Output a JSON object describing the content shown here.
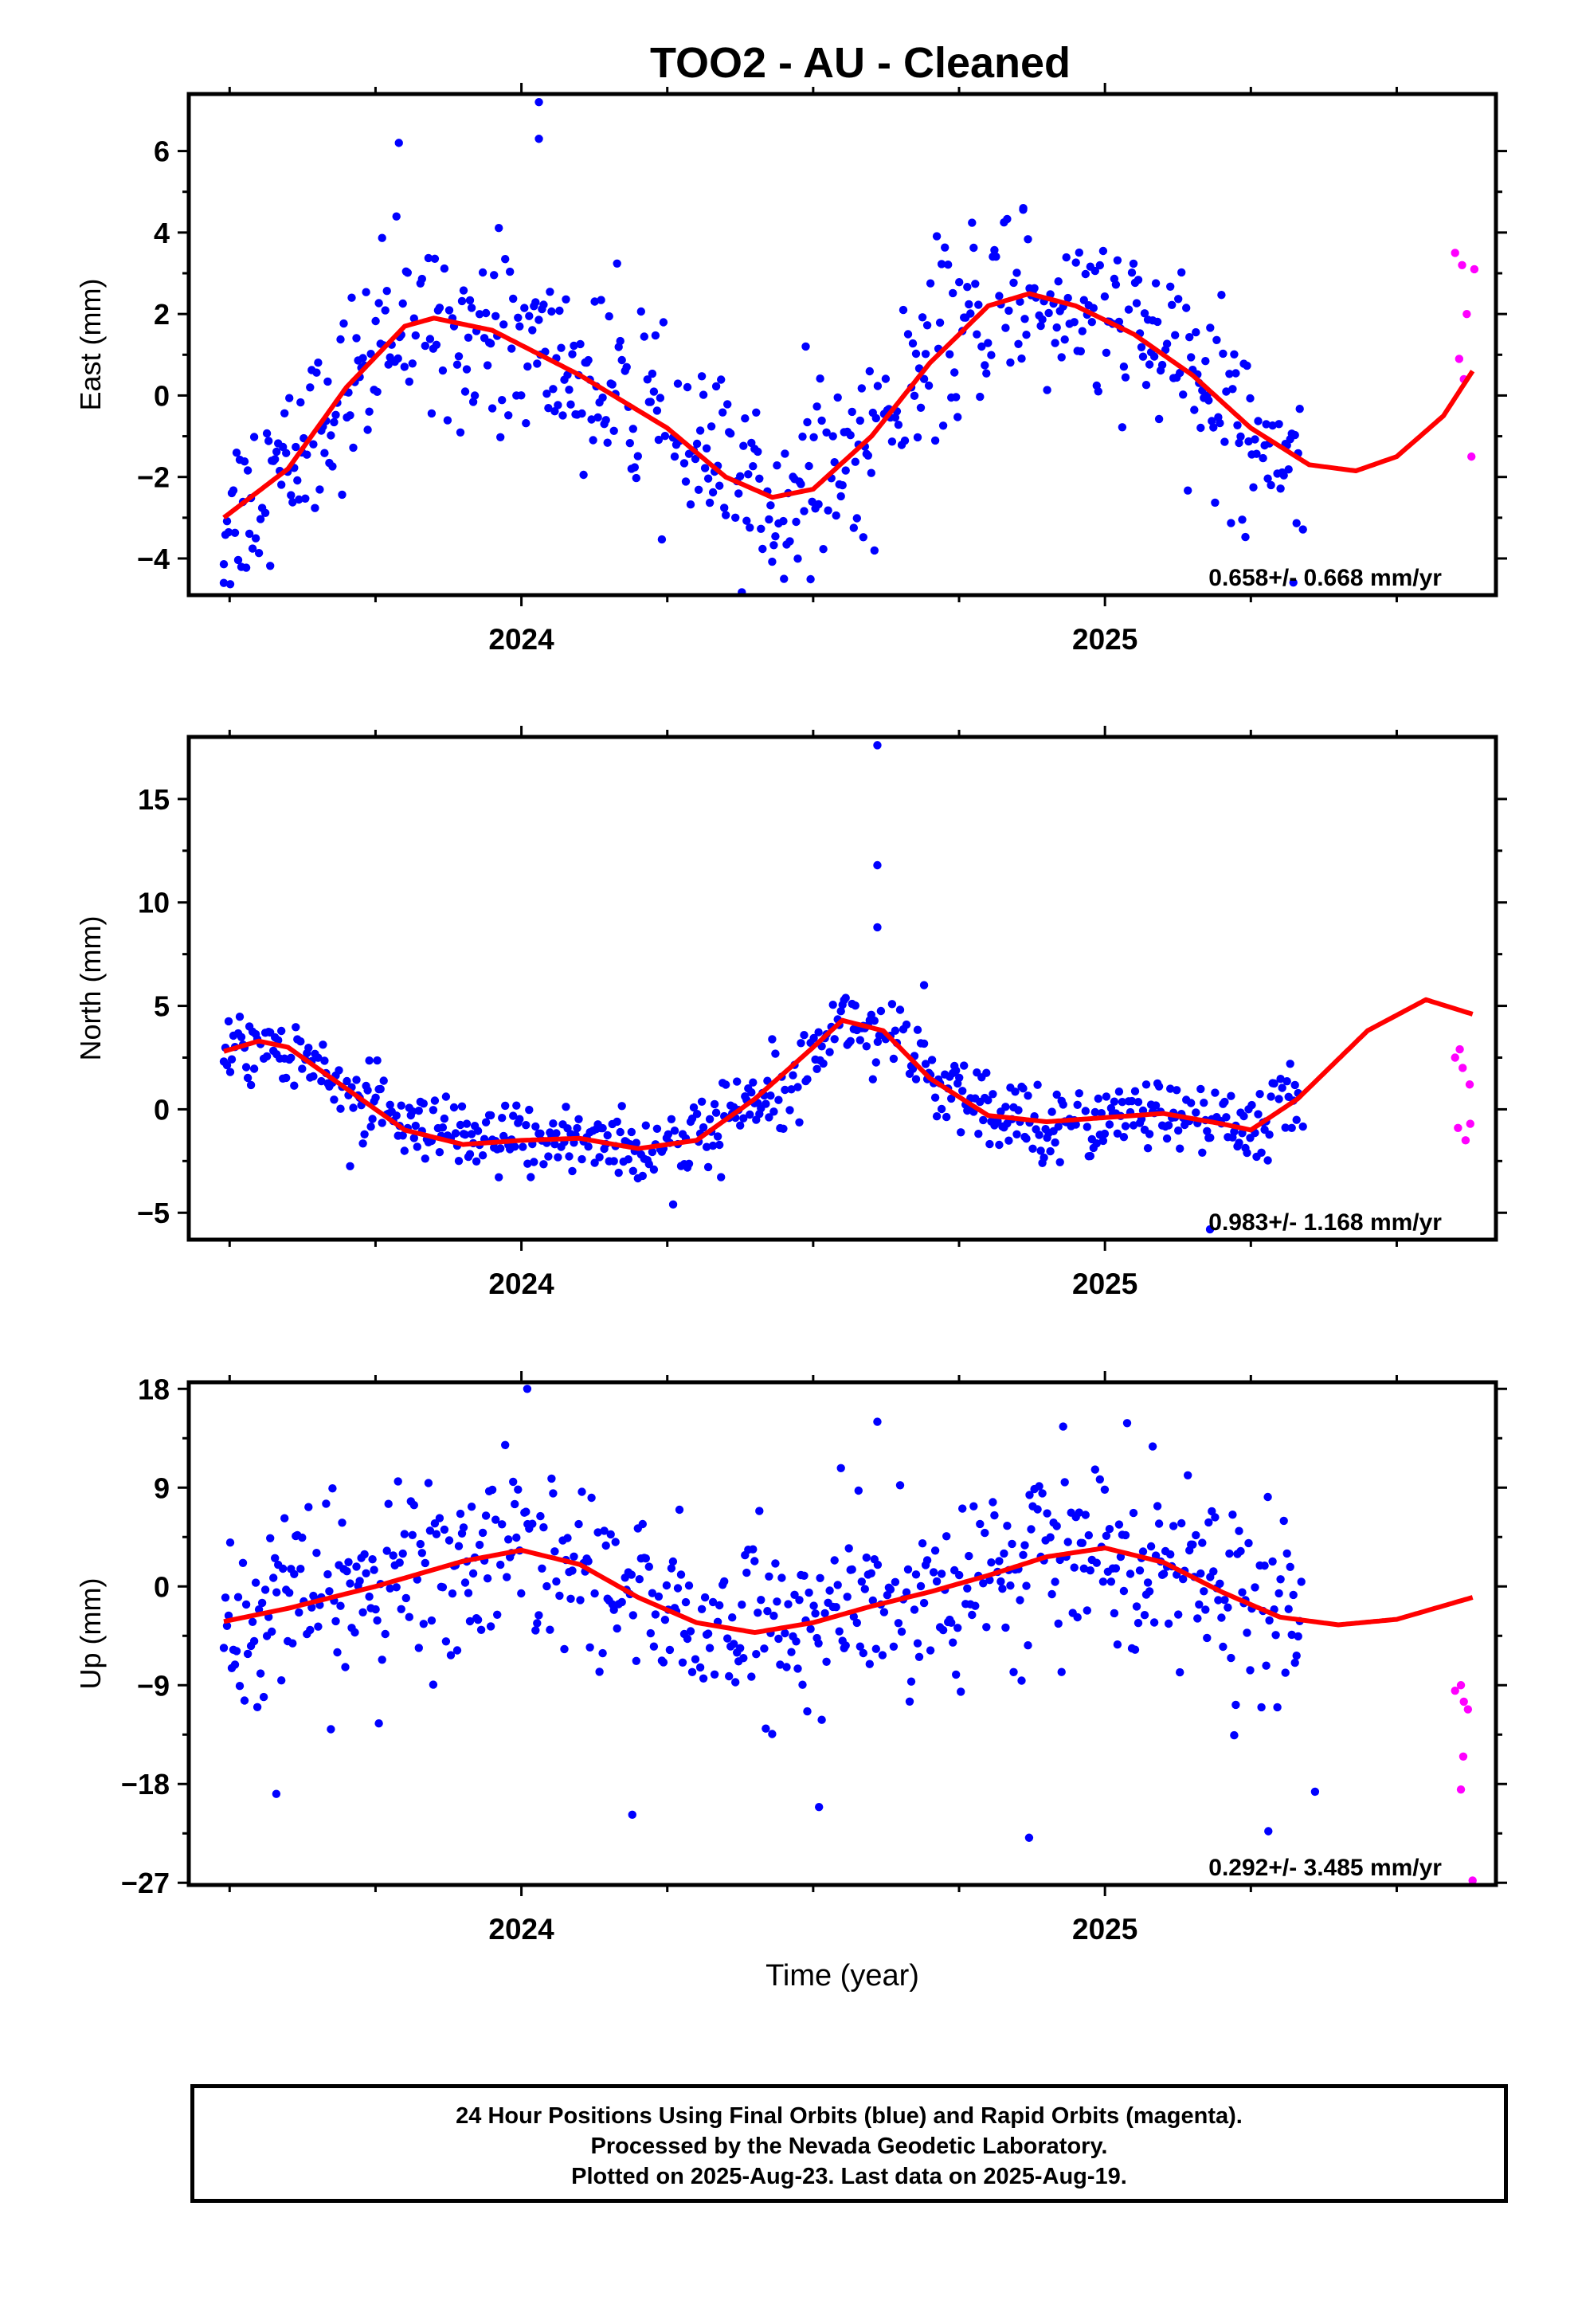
{
  "title": "TOO2  - AU - Cleaned",
  "footer": {
    "line1": "24 Hour Positions Using Final Orbits (blue) and Rapid Orbits (magenta).",
    "line2": "Processed by the Nevada Geodetic Laboratory.",
    "line3": "Plotted on 2025-Aug-23. Last data on 2025-Aug-19."
  },
  "colors": {
    "final": "#0000ff",
    "rapid": "#ff00ff",
    "fit": "#ff0000",
    "axis": "#000000"
  },
  "chart_data": [
    {
      "type": "scatter",
      "component": "east",
      "ylabel": "East (mm)",
      "xlabel": "",
      "ylim": [
        -4.9,
        7.4
      ],
      "yticks": [
        -4,
        -2,
        0,
        2,
        4,
        6
      ],
      "ytick_labels": [
        "−4",
        "−2",
        "0",
        "2",
        "4",
        "6"
      ],
      "xlim": [
        2023.43,
        2025.67
      ],
      "xtick_labels": [
        {
          "x": 2024,
          "label": "2024"
        },
        {
          "x": 2025,
          "label": "2025"
        }
      ],
      "rate_label": "0.658+/- 0.668 mm/yr",
      "fit": [
        {
          "t": 2023.49,
          "v": -3.0
        },
        {
          "t": 2023.6,
          "v": -1.8
        },
        {
          "t": 2023.7,
          "v": 0.2
        },
        {
          "t": 2023.8,
          "v": 1.7
        },
        {
          "t": 2023.85,
          "v": 1.9
        },
        {
          "t": 2023.95,
          "v": 1.6
        },
        {
          "t": 2024.1,
          "v": 0.5
        },
        {
          "t": 2024.25,
          "v": -0.8
        },
        {
          "t": 2024.35,
          "v": -2.0
        },
        {
          "t": 2024.43,
          "v": -2.5
        },
        {
          "t": 2024.5,
          "v": -2.3
        },
        {
          "t": 2024.6,
          "v": -1.0
        },
        {
          "t": 2024.7,
          "v": 0.8
        },
        {
          "t": 2024.8,
          "v": 2.2
        },
        {
          "t": 2024.87,
          "v": 2.5
        },
        {
          "t": 2024.95,
          "v": 2.2
        },
        {
          "t": 2025.05,
          "v": 1.5
        },
        {
          "t": 2025.15,
          "v": 0.5
        },
        {
          "t": 2025.25,
          "v": -0.8
        },
        {
          "t": 2025.35,
          "v": -1.7
        },
        {
          "t": 2025.43,
          "v": -1.85
        },
        {
          "t": 2025.5,
          "v": -1.5
        },
        {
          "t": 2025.58,
          "v": -0.5
        },
        {
          "t": 2025.63,
          "v": 0.6
        }
      ],
      "rapid": [
        {
          "t": 2025.6,
          "v": 3.5
        },
        {
          "t": 2025.612,
          "v": 3.2
        },
        {
          "t": 2025.62,
          "v": 2.0
        },
        {
          "t": 2025.607,
          "v": 0.9
        },
        {
          "t": 2025.615,
          "v": 0.4
        },
        {
          "t": 2025.628,
          "v": -1.5
        },
        {
          "t": 2025.633,
          "v": 3.1
        }
      ],
      "outliers": [
        {
          "t": 2024.03,
          "v": 7.2
        },
        {
          "t": 2024.03,
          "v": 6.3
        },
        {
          "t": 2023.79,
          "v": 6.2
        },
        {
          "t": 2024.86,
          "v": 4.6
        },
        {
          "t": 2023.49,
          "v": -4.6
        },
        {
          "t": 2024.45,
          "v": -4.5
        }
      ],
      "scatter_sd": 1.1
    },
    {
      "type": "scatter",
      "component": "north",
      "ylabel": "North (mm)",
      "xlabel": "",
      "ylim": [
        -6.3,
        18.0
      ],
      "yticks": [
        -5,
        0,
        5,
        10,
        15
      ],
      "ytick_labels": [
        "−5",
        "0",
        "5",
        "10",
        "15"
      ],
      "xlim": [
        2023.43,
        2025.67
      ],
      "xtick_labels": [
        {
          "x": 2024,
          "label": "2024"
        },
        {
          "x": 2025,
          "label": "2025"
        }
      ],
      "rate_label": "0.983+/- 1.168 mm/yr",
      "fit": [
        {
          "t": 2023.49,
          "v": 2.8
        },
        {
          "t": 2023.55,
          "v": 3.3
        },
        {
          "t": 2023.6,
          "v": 3.0
        },
        {
          "t": 2023.7,
          "v": 1.0
        },
        {
          "t": 2023.8,
          "v": -1.0
        },
        {
          "t": 2023.9,
          "v": -1.7
        },
        {
          "t": 2024.0,
          "v": -1.5
        },
        {
          "t": 2024.1,
          "v": -1.4
        },
        {
          "t": 2024.2,
          "v": -1.9
        },
        {
          "t": 2024.3,
          "v": -1.5
        },
        {
          "t": 2024.4,
          "v": 0.5
        },
        {
          "t": 2024.5,
          "v": 3.0
        },
        {
          "t": 2024.55,
          "v": 4.3
        },
        {
          "t": 2024.62,
          "v": 3.8
        },
        {
          "t": 2024.7,
          "v": 1.5
        },
        {
          "t": 2024.8,
          "v": -0.3
        },
        {
          "t": 2024.9,
          "v": -0.6
        },
        {
          "t": 2025.0,
          "v": -0.4
        },
        {
          "t": 2025.1,
          "v": -0.2
        },
        {
          "t": 2025.2,
          "v": -0.7
        },
        {
          "t": 2025.25,
          "v": -1.0
        },
        {
          "t": 2025.33,
          "v": 0.5
        },
        {
          "t": 2025.45,
          "v": 3.8
        },
        {
          "t": 2025.55,
          "v": 5.3
        },
        {
          "t": 2025.63,
          "v": 4.6
        }
      ],
      "rapid": [
        {
          "t": 2025.6,
          "v": 2.5
        },
        {
          "t": 2025.608,
          "v": 2.9
        },
        {
          "t": 2025.613,
          "v": 2.0
        },
        {
          "t": 2025.625,
          "v": 1.2
        },
        {
          "t": 2025.605,
          "v": -0.9
        },
        {
          "t": 2025.618,
          "v": -1.5
        },
        {
          "t": 2025.626,
          "v": -0.7
        }
      ],
      "outliers": [
        {
          "t": 2024.61,
          "v": 17.6
        },
        {
          "t": 2024.61,
          "v": 11.8
        },
        {
          "t": 2024.61,
          "v": 8.8
        },
        {
          "t": 2024.69,
          "v": 6.0
        },
        {
          "t": 2025.18,
          "v": -5.8
        },
        {
          "t": 2024.26,
          "v": -4.6
        }
      ],
      "scatter_sd": 0.9
    },
    {
      "type": "scatter",
      "component": "up",
      "ylabel": "Up (mm)",
      "xlabel": "Time (year)",
      "ylim": [
        -27.2,
        18.6
      ],
      "yticks": [
        -27,
        -18,
        -9,
        0,
        9,
        18
      ],
      "ytick_labels": [
        "−27",
        "−18",
        "−9",
        "0",
        "9",
        "18"
      ],
      "xlim": [
        2023.43,
        2025.67
      ],
      "xtick_labels": [
        {
          "x": 2024,
          "label": "2024"
        },
        {
          "x": 2025,
          "label": "2025"
        }
      ],
      "rate_label": "0.292+/- 3.485 mm/yr",
      "fit": [
        {
          "t": 2023.49,
          "v": -3.2
        },
        {
          "t": 2023.6,
          "v": -2.0
        },
        {
          "t": 2023.75,
          "v": 0.0
        },
        {
          "t": 2023.9,
          "v": 2.3
        },
        {
          "t": 2024.0,
          "v": 3.3
        },
        {
          "t": 2024.1,
          "v": 2.0
        },
        {
          "t": 2024.2,
          "v": -1.0
        },
        {
          "t": 2024.3,
          "v": -3.3
        },
        {
          "t": 2024.4,
          "v": -4.2
        },
        {
          "t": 2024.5,
          "v": -3.3
        },
        {
          "t": 2024.6,
          "v": -1.8
        },
        {
          "t": 2024.7,
          "v": -0.5
        },
        {
          "t": 2024.8,
          "v": 1.0
        },
        {
          "t": 2024.9,
          "v": 2.7
        },
        {
          "t": 2025.0,
          "v": 3.5
        },
        {
          "t": 2025.1,
          "v": 2.2
        },
        {
          "t": 2025.2,
          "v": -0.5
        },
        {
          "t": 2025.3,
          "v": -2.8
        },
        {
          "t": 2025.4,
          "v": -3.5
        },
        {
          "t": 2025.5,
          "v": -3.0
        },
        {
          "t": 2025.63,
          "v": -1.0
        }
      ],
      "rapid": [
        {
          "t": 2025.6,
          "v": -9.5
        },
        {
          "t": 2025.61,
          "v": -9.0
        },
        {
          "t": 2025.615,
          "v": -10.5
        },
        {
          "t": 2025.622,
          "v": -11.2
        },
        {
          "t": 2025.614,
          "v": -15.5
        },
        {
          "t": 2025.61,
          "v": -18.5
        },
        {
          "t": 2025.63,
          "v": -26.8
        }
      ],
      "outliers": [
        {
          "t": 2024.01,
          "v": 18.0
        },
        {
          "t": 2024.61,
          "v": 15.0
        },
        {
          "t": 2024.19,
          "v": -20.8
        },
        {
          "t": 2024.51,
          "v": -20.1
        },
        {
          "t": 2024.87,
          "v": -22.9
        },
        {
          "t": 2025.28,
          "v": -22.3
        },
        {
          "t": 2023.58,
          "v": -18.9
        },
        {
          "t": 2025.36,
          "v": -18.7
        }
      ],
      "scatter_sd": 4.0
    }
  ]
}
